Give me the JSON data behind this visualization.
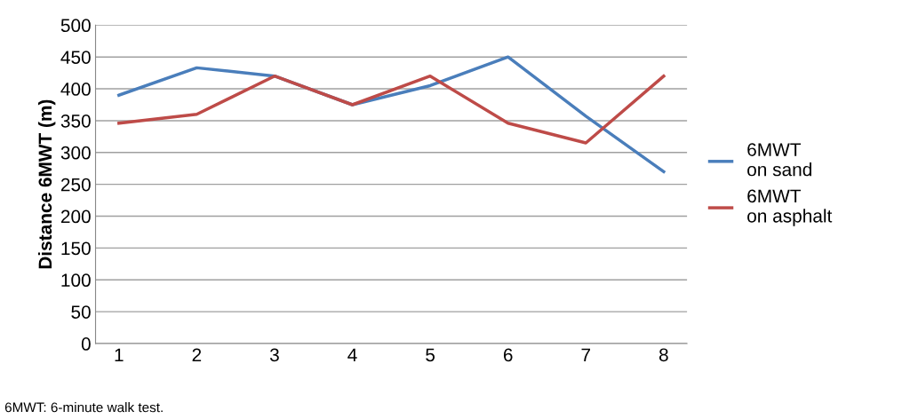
{
  "chart_data": {
    "type": "line",
    "ylabel": "Distance 6MWT (m)",
    "categories": [
      "1",
      "2",
      "3",
      "4",
      "5",
      "6",
      "7",
      "8"
    ],
    "series": [
      {
        "name": "6MWT\non sand",
        "color": "#4a7ebb",
        "values": [
          390,
          433,
          420,
          375,
          405,
          450,
          357,
          270
        ]
      },
      {
        "name": "6MWT\non asphalt",
        "color": "#be4b48",
        "values": [
          346,
          360,
          420,
          375,
          420,
          346,
          315,
          420
        ]
      }
    ],
    "ylim": [
      0,
      500
    ],
    "yticks": [
      0,
      50,
      100,
      150,
      200,
      250,
      300,
      350,
      400,
      450,
      500
    ],
    "grid": "y",
    "legend": "right",
    "marker": "none",
    "line_style": "solid",
    "annotations": [
      "6MWT: 6-minute walk test."
    ]
  }
}
